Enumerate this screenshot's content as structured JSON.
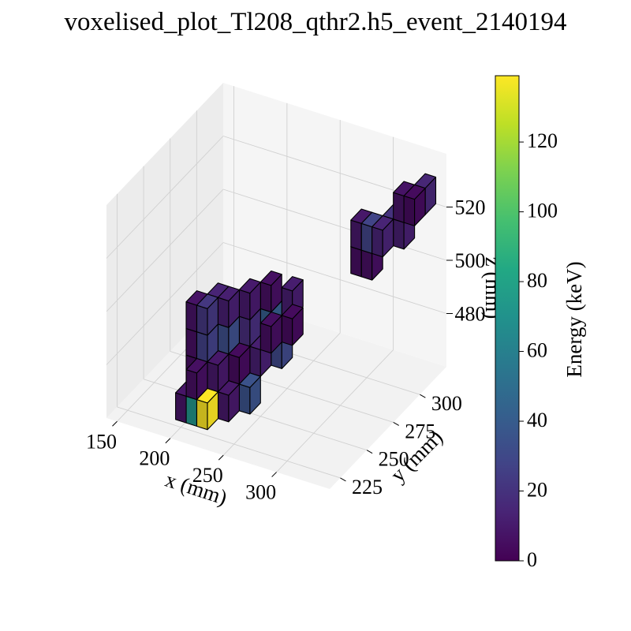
{
  "chart_data": {
    "type": "voxel3d",
    "title": "voxelised_plot_Tl208_qthr2.h5_event_2140194",
    "xlabel": "x (mm)",
    "ylabel": "y (mm)",
    "zlabel": "z (mm)",
    "x_ticks": [
      150,
      200,
      250,
      300
    ],
    "y_ticks": [
      225,
      250,
      275,
      300
    ],
    "z_ticks": [
      480,
      500,
      520
    ],
    "colorbar": {
      "label": "Energy (keV)",
      "min": 0,
      "max": 139,
      "ticks": [
        0,
        20,
        40,
        60,
        80,
        100,
        120
      ],
      "colormap": "viridis"
    },
    "voxel_size_mm": [
      10,
      10,
      10
    ],
    "voxels": [
      {
        "x": 205,
        "y": 225,
        "z": 470,
        "e": 8
      },
      {
        "x": 215,
        "y": 225,
        "z": 470,
        "e": 72
      },
      {
        "x": 225,
        "y": 225,
        "z": 470,
        "e": 139
      },
      {
        "x": 215,
        "y": 225,
        "z": 480,
        "e": 6
      },
      {
        "x": 205,
        "y": 235,
        "z": 480,
        "e": 5
      },
      {
        "x": 205,
        "y": 235,
        "z": 490,
        "e": 6
      },
      {
        "x": 205,
        "y": 235,
        "z": 500,
        "e": 7
      },
      {
        "x": 215,
        "y": 235,
        "z": 490,
        "e": 26
      },
      {
        "x": 215,
        "y": 235,
        "z": 500,
        "e": 22
      },
      {
        "x": 215,
        "y": 245,
        "z": 500,
        "e": 14
      },
      {
        "x": 225,
        "y": 235,
        "z": 480,
        "e": 9
      },
      {
        "x": 225,
        "y": 245,
        "z": 490,
        "e": 33
      },
      {
        "x": 225,
        "y": 245,
        "z": 500,
        "e": 12
      },
      {
        "x": 235,
        "y": 245,
        "z": 480,
        "e": 4
      },
      {
        "x": 235,
        "y": 255,
        "z": 490,
        "e": 18
      },
      {
        "x": 235,
        "y": 255,
        "z": 500,
        "e": 10
      },
      {
        "x": 245,
        "y": 255,
        "z": 480,
        "e": 12
      },
      {
        "x": 245,
        "y": 265,
        "z": 490,
        "e": 40
      },
      {
        "x": 245,
        "y": 265,
        "z": 500,
        "e": 6
      },
      {
        "x": 255,
        "y": 255,
        "z": 490,
        "e": 5
      },
      {
        "x": 255,
        "y": 265,
        "z": 480,
        "e": 30
      },
      {
        "x": 265,
        "y": 265,
        "z": 490,
        "e": 4
      },
      {
        "x": 255,
        "y": 275,
        "z": 495,
        "e": 11
      },
      {
        "x": 245,
        "y": 245,
        "z": 470,
        "e": 35
      },
      {
        "x": 235,
        "y": 235,
        "z": 470,
        "e": 9
      },
      {
        "x": 295,
        "y": 300,
        "z": 505,
        "e": 5
      },
      {
        "x": 295,
        "y": 300,
        "z": 515,
        "e": 9
      },
      {
        "x": 305,
        "y": 300,
        "z": 505,
        "e": 6
      },
      {
        "x": 305,
        "y": 300,
        "z": 515,
        "e": 28
      },
      {
        "x": 315,
        "y": 300,
        "z": 515,
        "e": 14
      },
      {
        "x": 315,
        "y": 310,
        "z": 515,
        "e": 20
      },
      {
        "x": 325,
        "y": 310,
        "z": 515,
        "e": 12
      },
      {
        "x": 325,
        "y": 310,
        "z": 525,
        "e": 7
      },
      {
        "x": 335,
        "y": 310,
        "z": 525,
        "e": 4
      },
      {
        "x": 335,
        "y": 320,
        "z": 525,
        "e": 15
      }
    ]
  }
}
